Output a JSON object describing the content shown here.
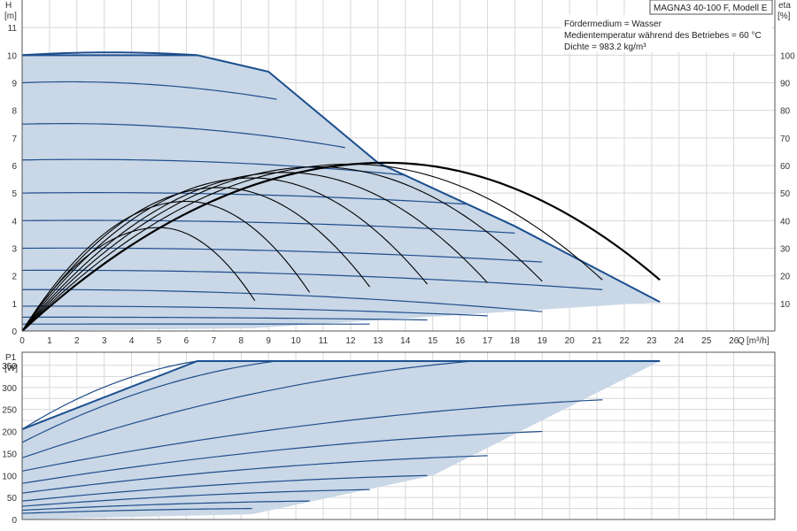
{
  "title": "MAGNA3 40-100 F, Modell E",
  "info_lines": [
    "Fördermedium = Wasser",
    "Medientemperatur während des Betriebes = 60 °C",
    "Dichte = 983.2 kg/m³"
  ],
  "colors": {
    "area_fill": "#c9d7e6",
    "curve": "#1f4e8c",
    "envelope": "#1b4f8f",
    "efficiency": "#000000",
    "grid": "#d8d8d8",
    "axis": "#555555"
  },
  "chart_data": [
    {
      "type": "line",
      "xlabel": "Q",
      "x_unit": "[m³/h]",
      "ylabel": "H",
      "y_unit": "[m]",
      "y2label": "eta",
      "y2_unit": "[%]",
      "xlim": [
        0,
        27.5
      ],
      "ylim": [
        0,
        12
      ],
      "y2lim": [
        0,
        120
      ],
      "x_ticks": [
        0,
        1,
        2,
        3,
        4,
        5,
        6,
        7,
        8,
        9,
        10,
        11,
        12,
        13,
        14,
        15,
        16,
        17,
        18,
        19,
        20,
        21,
        22,
        23,
        24,
        25,
        26
      ],
      "y_ticks": [
        0,
        1,
        2,
        3,
        4,
        5,
        6,
        7,
        8,
        9,
        10,
        11
      ],
      "y2_ticks": [
        10,
        20,
        30,
        40,
        50,
        60,
        70,
        80,
        90,
        100
      ],
      "grid": true,
      "envelope": [
        [
          0,
          10
        ],
        [
          6.4,
          10
        ],
        [
          9,
          9.4
        ],
        [
          13,
          6.1
        ],
        [
          18,
          3.8
        ],
        [
          23.3,
          1.05
        ],
        [
          8.4,
          0.1
        ],
        [
          0,
          0
        ]
      ],
      "head_curves": [
        {
          "h0": 10.0,
          "x_end": 6.4,
          "h_end": 10.0
        },
        {
          "h0": 9.0,
          "x_end": 9.3,
          "h_end": 8.4
        },
        {
          "h0": 7.5,
          "x_end": 11.8,
          "h_end": 6.65
        },
        {
          "h0": 6.2,
          "x_end": 14.0,
          "h_end": 5.65
        },
        {
          "h0": 5.0,
          "x_end": 16.2,
          "h_end": 4.6
        },
        {
          "h0": 4.0,
          "x_end": 18.0,
          "h_end": 3.55
        },
        {
          "h0": 3.0,
          "x_end": 19.0,
          "h_end": 2.5
        },
        {
          "h0": 2.2,
          "x_end": 21.2,
          "h_end": 1.5
        },
        {
          "h0": 1.5,
          "x_end": 19.0,
          "h_end": 0.7
        },
        {
          "h0": 0.9,
          "x_end": 17.0,
          "h_end": 0.55
        },
        {
          "h0": 0.5,
          "x_end": 14.8,
          "h_end": 0.4
        },
        {
          "h0": 0.25,
          "x_end": 12.7,
          "h_end": 0.25
        }
      ],
      "efficiency_curves": [
        {
          "x_end": 8.5,
          "eta_peak": 37.5,
          "x_peak": 5.0,
          "eta_end": 11
        },
        {
          "x_end": 10.5,
          "eta_peak": 47.0,
          "x_peak": 6.0,
          "eta_end": 14
        },
        {
          "x_end": 12.7,
          "eta_peak": 52.0,
          "x_peak": 7.2,
          "eta_end": 16
        },
        {
          "x_end": 14.8,
          "eta_peak": 55.5,
          "x_peak": 8.4,
          "eta_end": 17
        },
        {
          "x_end": 17.0,
          "eta_peak": 57.5,
          "x_peak": 9.6,
          "eta_end": 17.5
        },
        {
          "x_end": 19.0,
          "eta_peak": 59.5,
          "x_peak": 10.8,
          "eta_end": 18
        },
        {
          "x_end": 21.2,
          "eta_peak": 60.5,
          "x_peak": 12.0,
          "eta_end": 18.5
        },
        {
          "x_end": 23.3,
          "eta_peak": 61.0,
          "x_peak": 13.3,
          "eta_end": 18.5,
          "bold": true
        }
      ]
    },
    {
      "type": "line",
      "ylabel": "P1",
      "y_unit": "[W]",
      "xlim": [
        0,
        27.5
      ],
      "ylim": [
        0,
        380
      ],
      "y_ticks": [
        0,
        25,
        50,
        75,
        100,
        125,
        150,
        175,
        200,
        225,
        250,
        275,
        300,
        325,
        350
      ],
      "y_tick_labels": [
        "0",
        "",
        "50",
        "",
        "100",
        "",
        "150",
        "",
        "200",
        "",
        "250",
        "",
        "300",
        "",
        "350"
      ],
      "grid": true,
      "envelope": [
        [
          0,
          205
        ],
        [
          6.4,
          360
        ],
        [
          23.3,
          360
        ],
        [
          15,
          100
        ],
        [
          8.4,
          12
        ],
        [
          0,
          0
        ]
      ],
      "power_curves": [
        {
          "p0": 205,
          "x_end": 6.4,
          "p_end": 360
        },
        {
          "p0": 175,
          "x_end": 9.3,
          "p_end": 360
        },
        {
          "p0": 140,
          "x_end": 16.5,
          "p_end": 360
        },
        {
          "p0": 110,
          "x_end": 21.2,
          "p_end": 272
        },
        {
          "p0": 82,
          "x_end": 19.0,
          "p_end": 200
        },
        {
          "p0": 60,
          "x_end": 17.0,
          "p_end": 145
        },
        {
          "p0": 42,
          "x_end": 14.8,
          "p_end": 100
        },
        {
          "p0": 30,
          "x_end": 12.7,
          "p_end": 68
        },
        {
          "p0": 21,
          "x_end": 10.5,
          "p_end": 42
        },
        {
          "p0": 14,
          "x_end": 8.4,
          "p_end": 25
        }
      ]
    }
  ]
}
